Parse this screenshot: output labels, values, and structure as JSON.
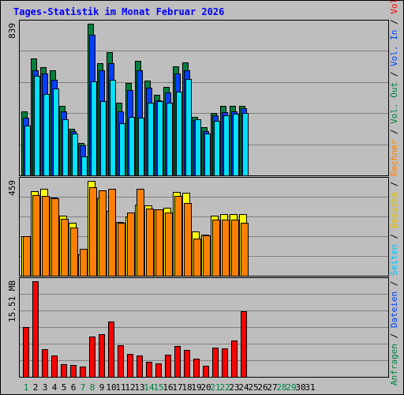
{
  "title": "Tages-Statistik im Monat Februar 2026",
  "colors": {
    "background": "#BEBEBE",
    "frame": "#000000",
    "title": "#0000FF",
    "grid": "#808080",
    "anfragen": "#008040",
    "dateien": "#0040FF",
    "seiten": "#00E0FF",
    "besuche": "#FFFF00",
    "rechner": "#FF8000",
    "volumen": "#FF0000",
    "weekday_label": "#000000",
    "weekend_label": "#008040"
  },
  "right_legend": [
    {
      "text": "Anfragen",
      "color": "#008040"
    },
    {
      "text": " / ",
      "color": "#000000"
    },
    {
      "text": "Dateien",
      "color": "#0040FF"
    },
    {
      "text": " / ",
      "color": "#000000"
    },
    {
      "text": "Seiten",
      "color": "#00C0FF"
    },
    {
      "text": " / ",
      "color": "#000000"
    },
    {
      "text": "Besuche",
      "color": "#E0C000"
    },
    {
      "text": " / ",
      "color": "#000000"
    },
    {
      "text": "Rechner",
      "color": "#FF8000"
    },
    {
      "text": " / ",
      "color": "#000000"
    },
    {
      "text": "Vol. Out",
      "color": "#008040"
    },
    {
      "text": " / ",
      "color": "#000000"
    },
    {
      "text": "Vol. In",
      "color": "#0040FF"
    },
    {
      "text": " / ",
      "color": "#000000"
    },
    {
      "text": "Volumen",
      "color": "#FF0000"
    }
  ],
  "chart_data": {
    "type": "bar",
    "days": [
      "1",
      "2",
      "3",
      "4",
      "5",
      "6",
      "7",
      "8",
      "9",
      "10",
      "11",
      "12",
      "13",
      "14",
      "15",
      "16",
      "17",
      "18",
      "19",
      "20",
      "21",
      "22",
      "23",
      "24",
      "25",
      "26",
      "27",
      "28",
      "29",
      "30",
      "31"
    ],
    "weekend_days": [
      "1",
      "7",
      "8",
      "14",
      "15",
      "21",
      "22",
      "28",
      "29"
    ],
    "panels": [
      {
        "ymax_label": "839",
        "ymax": 839,
        "series": [
          {
            "name": "Anfragen",
            "values": [
              355,
              645,
              600,
              580,
              385,
              260,
              180,
              839,
              620,
              680,
              400,
              510,
              635,
              525,
              445,
              490,
              605,
              625,
              325,
              265,
              345,
              385,
              385,
              385,
              0,
              0,
              0,
              0,
              0,
              0,
              0
            ]
          },
          {
            "name": "Dateien",
            "values": [
              320,
              580,
              565,
              530,
              355,
              245,
              165,
              780,
              580,
              620,
              355,
              470,
              580,
              485,
              415,
              460,
              565,
              580,
              305,
              245,
              330,
              350,
              355,
              370,
              0,
              0,
              0,
              0,
              0,
              0,
              0
            ]
          },
          {
            "name": "Seiten",
            "values": [
              275,
              550,
              450,
              480,
              310,
              230,
              105,
              520,
              410,
              530,
              290,
              325,
              320,
              400,
              410,
              400,
              465,
              535,
              310,
              230,
              300,
              330,
              340,
              345,
              0,
              0,
              0,
              0,
              0,
              0,
              0
            ]
          }
        ]
      },
      {
        "ymax_label": "459",
        "ymax": 459,
        "series": [
          {
            "name": "Besuche",
            "values": [
              190,
              410,
              420,
              380,
              290,
              255,
              105,
              459,
              375,
              315,
              260,
              285,
              345,
              340,
              320,
              330,
              405,
              400,
              215,
              200,
              290,
              300,
              300,
              300,
              0,
              0,
              0,
              0,
              0,
              0,
              0
            ]
          },
          {
            "name": "Rechner",
            "values": [
              190,
              390,
              385,
              375,
              275,
              235,
              130,
              430,
              415,
              420,
              255,
              305,
              420,
              325,
              320,
              305,
              385,
              350,
              180,
              195,
              270,
              270,
              270,
              255,
              0,
              0,
              0,
              0,
              0,
              0,
              0
            ]
          }
        ]
      },
      {
        "ymax_label": "15.51 MB",
        "ymax": 15.51,
        "series": [
          {
            "name": "Volumen",
            "values": [
              8.1,
              15.51,
              4.5,
              3.4,
              2.1,
              1.9,
              1.7,
              6.5,
              6.9,
              9.0,
              5.1,
              3.7,
              3.5,
              2.4,
              2.2,
              3.6,
              5.0,
              4.4,
              2.9,
              1.8,
              4.8,
              4.6,
              5.9,
              10.6,
              0,
              0,
              0,
              0,
              0,
              0,
              0
            ]
          }
        ]
      }
    ]
  }
}
